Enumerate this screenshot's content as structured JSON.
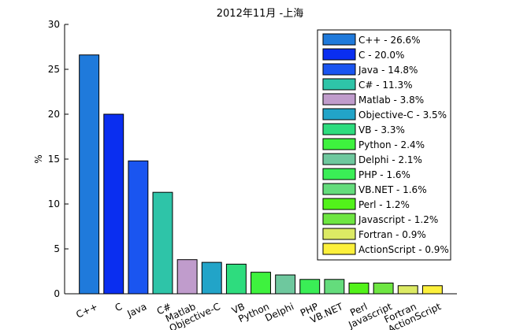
{
  "chart_data": {
    "type": "bar",
    "title": "2012年11月 -上海",
    "xlabel": "",
    "ylabel": "%",
    "ylim": [
      0,
      30
    ],
    "yticks": [
      0,
      5,
      10,
      15,
      20,
      25,
      30
    ],
    "grid": false,
    "legend_position": "top-right",
    "categories": [
      "C++",
      "C",
      "Java",
      "C#",
      "Matlab",
      "Objective-C",
      "VB",
      "Python",
      "Delphi",
      "PHP",
      "VB.NET",
      "Perl",
      "Javascript",
      "Fortran",
      "ActionScript"
    ],
    "values": [
      26.6,
      20.0,
      14.8,
      11.3,
      3.8,
      3.5,
      3.3,
      2.4,
      2.1,
      1.6,
      1.6,
      1.2,
      1.2,
      0.9,
      0.9
    ],
    "colors": [
      "#1f7adb",
      "#0a2ef0",
      "#1a55f0",
      "#2ec4a8",
      "#c09ccc",
      "#22a4c8",
      "#2edc7e",
      "#3ef23e",
      "#6ec89e",
      "#3aee56",
      "#64dc7c",
      "#52f21a",
      "#6ee642",
      "#dcea64",
      "#fcf03c"
    ],
    "legend": [
      "C++ - 26.6%",
      "C - 20.0%",
      "Java - 14.8%",
      "C# - 11.3%",
      "Matlab - 3.8%",
      "Objective-C - 3.5%",
      "VB - 3.3%",
      "Python - 2.4%",
      "Delphi - 2.1%",
      "PHP - 1.6%",
      "VB.NET - 1.6%",
      "Perl - 1.2%",
      "Javascript - 1.2%",
      "Fortran - 0.9%",
      "ActionScript - 0.9%"
    ]
  }
}
